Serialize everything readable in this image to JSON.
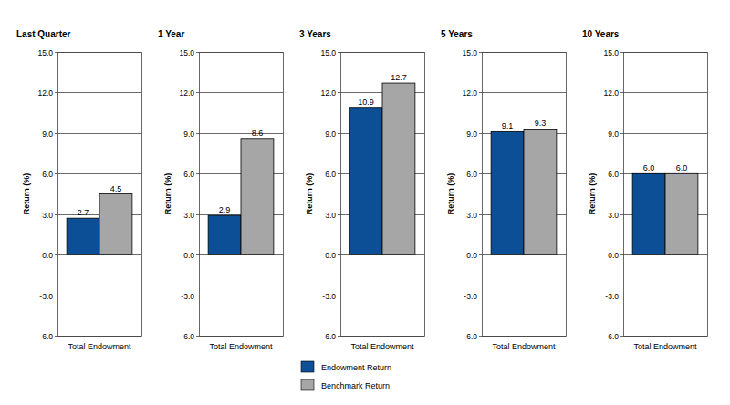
{
  "chart_data": [
    {
      "type": "bar",
      "title": "Last Quarter",
      "y_label": "Return (%)",
      "categories": [
        "Total Endowment"
      ],
      "series": [
        {
          "name": "Endowment Return",
          "color": "#0d4f97",
          "values": [
            2.7
          ]
        },
        {
          "name": "Benchmark Return",
          "color": "#a6a6a6",
          "values": [
            4.5
          ]
        }
      ],
      "ylim": [
        -6,
        15
      ],
      "yticks": [
        {
          "value": -6,
          "label": "-6.0"
        },
        {
          "value": -3,
          "label": "-3.0"
        },
        {
          "value": 0,
          "label": "0.0"
        },
        {
          "value": 3,
          "label": "3.0"
        },
        {
          "value": 6,
          "label": "6.0"
        },
        {
          "value": 9,
          "label": "9.0"
        },
        {
          "value": 12,
          "label": "12.0"
        },
        {
          "value": 15,
          "label": "15.0"
        }
      ],
      "grid": true,
      "data_labels": true,
      "legend": "bottom"
    },
    {
      "type": "bar",
      "title": "1 Year",
      "y_label": "Return (%)",
      "categories": [
        "Total Endowment"
      ],
      "series": [
        {
          "color": "#0d4f97",
          "values": [
            2.9
          ]
        },
        {
          "color": "#a6a6a6",
          "values": [
            8.6
          ]
        }
      ],
      "ylim": [
        -6,
        15
      ],
      "yticks": [
        {
          "value": -6,
          "label": "-6.0"
        },
        {
          "value": -3,
          "label": "-3.0"
        },
        {
          "value": 0,
          "label": "0.0"
        },
        {
          "value": 3,
          "label": "3.0"
        },
        {
          "value": 6,
          "label": "6.0"
        },
        {
          "value": 9,
          "label": "9.0"
        },
        {
          "value": 12,
          "label": "12.0"
        },
        {
          "value": 15,
          "label": "15.0"
        }
      ],
      "grid": true,
      "data_labels": true
    },
    {
      "type": "bar",
      "title": "3 Years",
      "y_label": "Return (%)",
      "categories": [
        "Total Endowment"
      ],
      "series": [
        {
          "color": "#0d4f97",
          "values": [
            10.9
          ]
        },
        {
          "color": "#a6a6a6",
          "values": [
            12.7
          ]
        }
      ],
      "ylim": [
        -6,
        15
      ],
      "yticks": [
        {
          "value": -6,
          "label": "-6.0"
        },
        {
          "value": -3,
          "label": "-3.0"
        },
        {
          "value": 0,
          "label": "0.0"
        },
        {
          "value": 3,
          "label": "3.0"
        },
        {
          "value": 6,
          "label": "6.0"
        },
        {
          "value": 9,
          "label": "9.0"
        },
        {
          "value": 12,
          "label": "12.0"
        },
        {
          "value": 15,
          "label": "15.0"
        }
      ],
      "grid": true,
      "data_labels": true
    },
    {
      "type": "bar",
      "title": "5 Years",
      "y_label": "Return (%)",
      "categories": [
        "Total Endowment"
      ],
      "series": [
        {
          "color": "#0d4f97",
          "values": [
            9.1
          ]
        },
        {
          "color": "#a6a6a6",
          "values": [
            9.3
          ]
        }
      ],
      "ylim": [
        -6,
        15
      ],
      "yticks": [
        {
          "value": -6,
          "label": "-6.0"
        },
        {
          "value": -3,
          "label": "-3.0"
        },
        {
          "value": 0,
          "label": "0.0"
        },
        {
          "value": 3,
          "label": "3.0"
        },
        {
          "value": 6,
          "label": "6.0"
        },
        {
          "value": 9,
          "label": "9.0"
        },
        {
          "value": 12,
          "label": "12.0"
        },
        {
          "value": 15,
          "label": "15.0"
        }
      ],
      "grid": true,
      "data_labels": true
    },
    {
      "type": "bar",
      "title": "10 Years",
      "y_label": "Return (%)",
      "categories": [
        "Total Endowment"
      ],
      "series": [
        {
          "color": "#0d4f97",
          "values": [
            6.0
          ],
          "value_labels": [
            "6.0"
          ]
        },
        {
          "color": "#a6a6a6",
          "values": [
            6.0
          ],
          "value_labels": [
            "6.0"
          ]
        }
      ],
      "ylim": [
        -6,
        15
      ],
      "yticks": [
        {
          "value": -6,
          "label": "-6.0"
        },
        {
          "value": -3,
          "label": "-3.0"
        },
        {
          "value": 0,
          "label": "0.0"
        },
        {
          "value": 3,
          "label": "3.0"
        },
        {
          "value": 6,
          "label": "6.0"
        },
        {
          "value": 9,
          "label": "9.0"
        },
        {
          "value": 12,
          "label": "12.0"
        },
        {
          "value": 15,
          "label": "15.0"
        }
      ],
      "grid": true,
      "data_labels": true
    }
  ]
}
